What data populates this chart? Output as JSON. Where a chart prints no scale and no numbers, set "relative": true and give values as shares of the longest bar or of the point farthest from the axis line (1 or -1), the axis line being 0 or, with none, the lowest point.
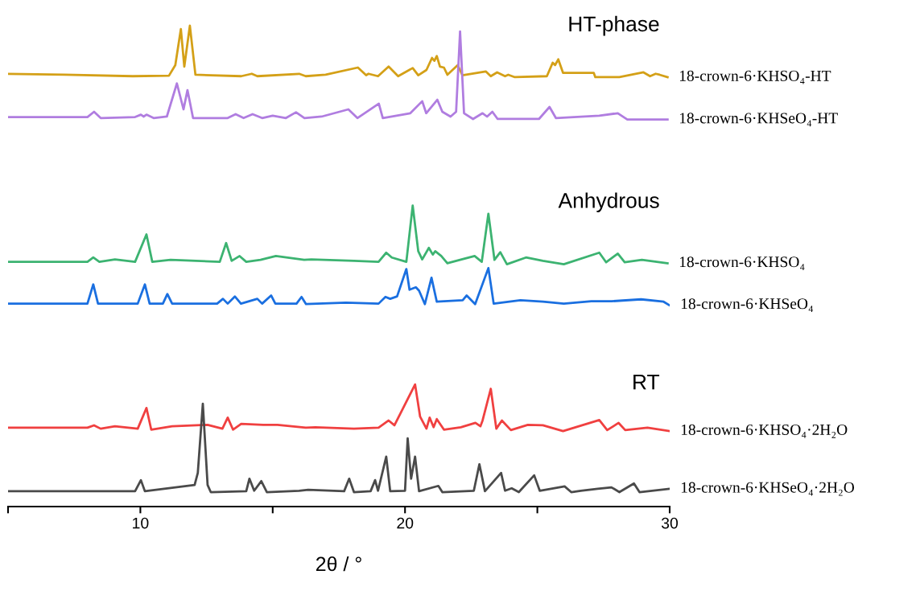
{
  "chart_data": {
    "type": "line",
    "relative": true,
    "xlabel": "2θ / °",
    "xlim": [
      5,
      30
    ],
    "xticks": [
      {
        "value": 5,
        "label": null
      },
      10,
      {
        "value": 15,
        "label": null
      },
      20,
      {
        "value": 25,
        "label": null
      },
      30
    ],
    "tick_labels": "x",
    "grid": false,
    "legend": false,
    "marker": "none",
    "line_style": "solid",
    "annotations": [
      "HT-phase",
      "Anhydrous",
      "RT"
    ],
    "series": [
      {
        "name": "18-crown-6·KHSO₄-HT",
        "color": "#d4a017",
        "x": [
          5.0,
          7.13,
          9.71,
          11.08,
          11.32,
          11.53,
          11.66,
          11.87,
          12.08,
          13.81,
          14.21,
          14.42,
          16.0,
          16.25,
          17.0,
          18.22,
          18.53,
          18.62,
          18.98,
          19.38,
          19.74,
          20.29,
          20.5,
          20.81,
          21.02,
          21.11,
          21.2,
          21.32,
          21.47,
          21.6,
          21.99,
          22.17,
          23.05,
          23.24,
          23.48,
          23.78,
          23.9,
          24.15,
          25.36,
          25.58,
          25.67,
          25.79,
          25.97,
          27.13,
          27.19,
          28.1,
          29.01,
          29.26,
          29.47,
          29.62,
          29.92
        ],
        "values": [
          0.9,
          0.898,
          0.895,
          0.896,
          0.918,
          0.993,
          0.915,
          1.0,
          0.898,
          0.895,
          0.9,
          0.895,
          0.9,
          0.895,
          0.898,
          0.913,
          0.897,
          0.9,
          0.895,
          0.915,
          0.895,
          0.912,
          0.897,
          0.908,
          0.933,
          0.927,
          0.937,
          0.915,
          0.913,
          0.898,
          0.918,
          0.897,
          0.905,
          0.895,
          0.903,
          0.895,
          0.898,
          0.893,
          0.895,
          0.923,
          0.918,
          0.93,
          0.902,
          0.902,
          0.893,
          0.893,
          0.903,
          0.895,
          0.9,
          0.898,
          0.893
        ]
      },
      {
        "name": "18-crown-6·KHSeO₄-HT",
        "color": "#b07de0",
        "x": [
          5.0,
          8.0,
          8.25,
          8.5,
          9.8,
          10.02,
          10.12,
          10.23,
          10.5,
          11.0,
          11.38,
          11.63,
          11.78,
          11.99,
          13.3,
          13.6,
          13.9,
          14.24,
          14.6,
          15.0,
          15.5,
          15.88,
          16.2,
          16.85,
          17.86,
          18.2,
          19.01,
          19.16,
          20.2,
          20.65,
          20.8,
          21.22,
          21.41,
          21.72,
          21.93,
          22.08,
          22.23,
          22.57,
          22.93,
          23.1,
          23.3,
          23.5,
          25.06,
          25.46,
          25.7,
          27.34,
          28.04,
          28.4,
          29.92
        ],
        "values": [
          0.81,
          0.81,
          0.821,
          0.808,
          0.81,
          0.815,
          0.811,
          0.815,
          0.808,
          0.811,
          0.88,
          0.826,
          0.866,
          0.808,
          0.808,
          0.816,
          0.808,
          0.816,
          0.808,
          0.813,
          0.808,
          0.82,
          0.808,
          0.811,
          0.826,
          0.808,
          0.838,
          0.808,
          0.818,
          0.843,
          0.818,
          0.846,
          0.821,
          0.811,
          0.821,
          0.988,
          0.818,
          0.806,
          0.818,
          0.811,
          0.821,
          0.806,
          0.806,
          0.831,
          0.808,
          0.813,
          0.818,
          0.805,
          0.805
        ]
      },
      {
        "name": "18-crown-6·KHSO₄",
        "color": "#3cb371",
        "x": [
          5.0,
          8.0,
          8.22,
          8.45,
          9.04,
          9.8,
          10.23,
          10.45,
          11.14,
          13.0,
          13.24,
          13.45,
          13.75,
          14.0,
          14.54,
          15.12,
          16.19,
          16.46,
          18.07,
          19.0,
          19.29,
          19.5,
          20.05,
          20.29,
          20.5,
          20.65,
          20.9,
          21.05,
          21.14,
          21.37,
          21.6,
          22.08,
          22.63,
          22.9,
          23.15,
          23.38,
          23.6,
          23.85,
          24.57,
          25.21,
          26.0,
          27.34,
          27.6,
          28.04,
          28.3,
          28.95,
          29.92
        ],
        "values": [
          0.509,
          0.509,
          0.518,
          0.509,
          0.514,
          0.509,
          0.566,
          0.509,
          0.513,
          0.509,
          0.548,
          0.511,
          0.521,
          0.509,
          0.513,
          0.521,
          0.513,
          0.514,
          0.511,
          0.509,
          0.528,
          0.518,
          0.509,
          0.626,
          0.531,
          0.514,
          0.538,
          0.524,
          0.531,
          0.521,
          0.506,
          0.513,
          0.521,
          0.509,
          0.609,
          0.513,
          0.529,
          0.504,
          0.518,
          0.511,
          0.504,
          0.528,
          0.508,
          0.526,
          0.508,
          0.513,
          0.506
        ]
      },
      {
        "name": "18-crown-6·KHSeO₄",
        "color": "#1a6fe0",
        "x": [
          5.0,
          8.0,
          8.22,
          8.4,
          9.9,
          10.17,
          10.35,
          10.85,
          11.02,
          11.2,
          12.9,
          13.12,
          13.3,
          13.57,
          13.8,
          14.42,
          14.6,
          14.94,
          15.1,
          15.9,
          16.09,
          16.26,
          17.77,
          19.0,
          19.26,
          19.44,
          19.7,
          20.05,
          20.17,
          20.41,
          20.53,
          20.75,
          21.0,
          21.2,
          22.18,
          22.33,
          22.65,
          23.15,
          23.35,
          24.36,
          25.21,
          26.0,
          27.04,
          27.8,
          28.92,
          29.77,
          29.98
        ],
        "values": [
          0.422,
          0.422,
          0.462,
          0.422,
          0.422,
          0.462,
          0.422,
          0.422,
          0.442,
          0.422,
          0.422,
          0.432,
          0.422,
          0.437,
          0.422,
          0.432,
          0.422,
          0.439,
          0.422,
          0.422,
          0.436,
          0.421,
          0.424,
          0.422,
          0.436,
          0.432,
          0.437,
          0.494,
          0.451,
          0.456,
          0.449,
          0.421,
          0.476,
          0.426,
          0.429,
          0.439,
          0.421,
          0.496,
          0.422,
          0.429,
          0.426,
          0.422,
          0.427,
          0.427,
          0.431,
          0.426,
          0.419
        ]
      },
      {
        "name": "18-crown-6·KHSO₄·2H₂O",
        "color": "#f04040",
        "x": [
          5.0,
          8.0,
          8.25,
          8.5,
          9.04,
          9.9,
          10.23,
          10.41,
          11.2,
          12.54,
          13.1,
          13.3,
          13.5,
          13.81,
          14.64,
          15.18,
          16.25,
          16.61,
          18.07,
          19.0,
          19.38,
          19.6,
          20.38,
          20.57,
          20.81,
          20.93,
          21.08,
          21.2,
          21.47,
          22.11,
          22.66,
          22.85,
          22.93,
          23.24,
          23.45,
          23.66,
          24.0,
          24.64,
          25.21,
          25.97,
          27.34,
          27.64,
          28.07,
          28.32,
          29.16,
          29.98
        ],
        "values": [
          0.164,
          0.164,
          0.169,
          0.162,
          0.167,
          0.162,
          0.205,
          0.16,
          0.167,
          0.17,
          0.162,
          0.185,
          0.16,
          0.172,
          0.17,
          0.17,
          0.164,
          0.165,
          0.162,
          0.164,
          0.179,
          0.169,
          0.254,
          0.187,
          0.162,
          0.185,
          0.165,
          0.182,
          0.16,
          0.165,
          0.174,
          0.167,
          0.179,
          0.245,
          0.162,
          0.179,
          0.159,
          0.17,
          0.169,
          0.157,
          0.18,
          0.159,
          0.174,
          0.159,
          0.164,
          0.157
        ]
      },
      {
        "name": "18-crown-6·KHSeO₄·2H₂O",
        "color": "#4a4a4a",
        "x": [
          5.0,
          9.8,
          10.02,
          10.17,
          12.05,
          12.17,
          12.36,
          12.54,
          12.66,
          14.0,
          14.12,
          14.3,
          14.57,
          14.78,
          16.0,
          16.34,
          17.7,
          17.89,
          18.07,
          18.7,
          18.87,
          18.98,
          19.29,
          19.44,
          20.0,
          20.1,
          20.23,
          20.38,
          20.53,
          21.26,
          21.41,
          22.6,
          22.81,
          23.02,
          23.63,
          23.78,
          24.03,
          24.3,
          24.88,
          25.09,
          26.03,
          26.28,
          26.64,
          27.28,
          27.8,
          28.1,
          28.65,
          28.86,
          29.98
        ],
        "values": [
          0.032,
          0.032,
          0.055,
          0.032,
          0.045,
          0.07,
          0.214,
          0.045,
          0.03,
          0.032,
          0.058,
          0.033,
          0.053,
          0.03,
          0.033,
          0.035,
          0.032,
          0.058,
          0.03,
          0.032,
          0.055,
          0.033,
          0.104,
          0.032,
          0.033,
          0.142,
          0.058,
          0.104,
          0.032,
          0.043,
          0.03,
          0.033,
          0.088,
          0.032,
          0.07,
          0.033,
          0.038,
          0.03,
          0.065,
          0.033,
          0.042,
          0.03,
          0.033,
          0.037,
          0.04,
          0.03,
          0.048,
          0.03,
          0.037
        ]
      }
    ]
  }
}
